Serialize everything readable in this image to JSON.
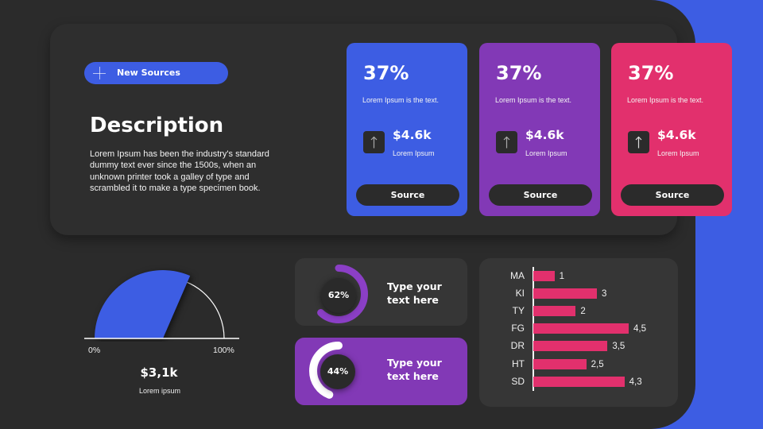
{
  "slide": {
    "background_color": "#2b2b2b",
    "accent_strip_color": "#3d5de3"
  },
  "header": {
    "new_sources_button": {
      "label": "New Sources",
      "icon": "plus-icon",
      "color": "#3d5de3"
    }
  },
  "description": {
    "title": "Description",
    "body_lines": [
      "Lorem Ipsum has been the industry's standard",
      "dummy text ever since the 1500s, when an",
      "unknown printer took a galley of type and",
      "scrambled it to make a type specimen book."
    ]
  },
  "cards": [
    {
      "percent": "37%",
      "text": "Lorem Ipsum is the text.",
      "icon": "arrow-up-icon",
      "value": "$4.6k",
      "value_label": "Lorem Ipsum",
      "button": "Source",
      "color": "#3d5de3"
    },
    {
      "percent": "37%",
      "text": "Lorem Ipsum is the text.",
      "icon": "arrow-up-icon",
      "value": "$4.6k",
      "value_label": "Lorem Ipsum",
      "button": "Source",
      "color": "#8239b6"
    },
    {
      "percent": "37%",
      "text": "Lorem Ipsum is the text.",
      "icon": "arrow-up-icon",
      "value": "$4.6k",
      "value_label": "Lorem Ipsum",
      "button": "Source",
      "color": "#e2306d"
    }
  ],
  "gauge": {
    "min_label": "0%",
    "max_label": "100%",
    "value_label": "$3,1k",
    "caption": "Lorem ipsum",
    "color": "#3d5de3"
  },
  "donuts": [
    {
      "percent_label": "62%",
      "text_lines": [
        "Type your",
        "text here"
      ],
      "arc_color": "#8b3fc6",
      "panel_color": "#363636"
    },
    {
      "percent_label": "44%",
      "text_lines": [
        "Type your",
        "text here"
      ],
      "arc_color": "#ffffff",
      "panel_color": "#8239b6"
    }
  ],
  "bar_chart": {
    "panel_color": "#363636",
    "bar_color": "#e2306d"
  },
  "chart_data": [
    {
      "type": "bar",
      "orientation": "horizontal",
      "title": "",
      "xlabel": "",
      "ylabel": "",
      "categories": [
        "MA",
        "KI",
        "TY",
        "FG",
        "DR",
        "HT",
        "SD"
      ],
      "values": [
        1,
        3,
        2,
        4.5,
        3.5,
        2.5,
        4.3
      ],
      "value_labels": [
        "1",
        "3",
        "2",
        "4,5",
        "3,5",
        "2,5",
        "4,3"
      ],
      "xlim": [
        0,
        4.5
      ],
      "grid": false,
      "legend": null,
      "bar_color": "#e2306d"
    },
    {
      "type": "pie",
      "subtype": "donut",
      "values": [
        62
      ],
      "labels": [
        "62%"
      ],
      "direction": "clockwise",
      "caption": "Type your text here"
    },
    {
      "type": "pie",
      "subtype": "donut",
      "values": [
        44
      ],
      "labels": [
        "44%"
      ],
      "direction": "counterclockwise",
      "caption": "Type your text here"
    },
    {
      "type": "pie",
      "subtype": "half-gauge",
      "value": 63,
      "range": [
        0,
        100
      ],
      "min_label": "0%",
      "max_label": "100%",
      "center_label": "$3,1k",
      "caption": "Lorem ipsum"
    }
  ]
}
